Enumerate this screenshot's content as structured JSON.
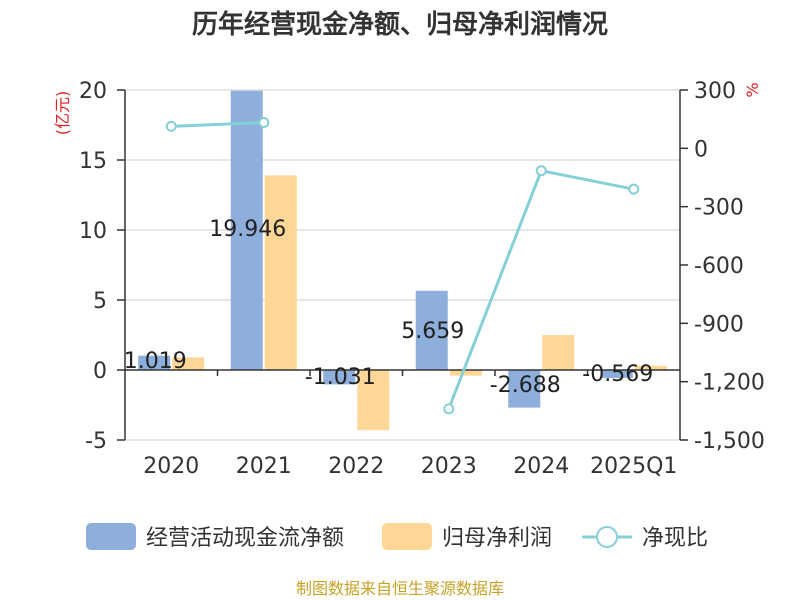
{
  "title": "历年经营现金净额、归母净利润情况",
  "source": "制图数据来自恒生聚源数据库",
  "colors": {
    "bar_cash": "#8eaedb",
    "bar_profit": "#fed796",
    "line_ratio": "#86d0d8",
    "axis": "#333333",
    "grid": "#cfcfcf",
    "unit": "#e02020",
    "source": "#c9a227"
  },
  "chart_data": {
    "type": "bar",
    "title": "历年经营现金净额、归母净利润情况",
    "categories": [
      "2020",
      "2021",
      "2022",
      "2023",
      "2024",
      "2025Q1"
    ],
    "y_left": {
      "unit": "(亿元)",
      "ylim": [
        -5,
        20
      ],
      "ticks": [
        "20",
        "15",
        "10",
        "5",
        "0",
        "-5"
      ],
      "tick_values": [
        20,
        15,
        10,
        5,
        0,
        -5
      ]
    },
    "y_right": {
      "unit": "%",
      "ylim": [
        -1500,
        300
      ],
      "ticks": [
        "300",
        "0",
        "-300",
        "-600",
        "-900",
        "-1,200",
        "-1,500"
      ],
      "tick_values": [
        300,
        0,
        -300,
        -600,
        -900,
        -1200,
        -1500
      ]
    },
    "series": [
      {
        "name": "经营活动现金流净额",
        "type": "bar",
        "axis": "left",
        "values": [
          1.019,
          19.946,
          -1.031,
          5.659,
          -2.688,
          -0.569
        ],
        "labels": [
          "1.019",
          "19.946",
          "-1.031",
          "5.659",
          "-2.688",
          "-0.569"
        ]
      },
      {
        "name": "归母净利润",
        "type": "bar",
        "axis": "left",
        "values": [
          0.9,
          13.9,
          -4.3,
          -0.4,
          2.5,
          0.3
        ]
      },
      {
        "name": "净现比",
        "type": "line",
        "axis": "right",
        "values": [
          113,
          133,
          null,
          -1340,
          -115,
          -210
        ]
      }
    ],
    "legend_position": "bottom"
  }
}
